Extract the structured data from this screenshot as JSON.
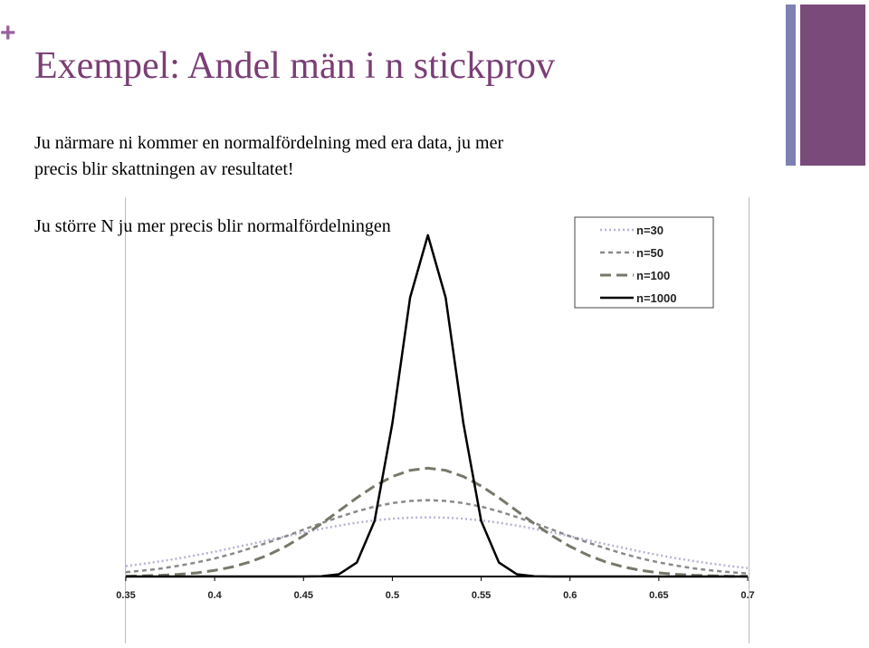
{
  "slide": {
    "marker": "+",
    "title": "Exempel: Andel män i n stickprov",
    "body": [
      "Ju närmare ni kommer en normalfördelning med era data, ju mer",
      "precis blir skattningen av resultatet!",
      "Ju större N ju mer precis blir normalfördelningen"
    ]
  },
  "chart_data": {
    "type": "line",
    "x": [
      0.35,
      0.36,
      0.37,
      0.38,
      0.39,
      0.4,
      0.41,
      0.42,
      0.43,
      0.44,
      0.45,
      0.46,
      0.47,
      0.48,
      0.49,
      0.5,
      0.51,
      0.52,
      0.53,
      0.54,
      0.55,
      0.56,
      0.57,
      0.58,
      0.59,
      0.6,
      0.61,
      0.62,
      0.63,
      0.64,
      0.65,
      0.66,
      0.67,
      0.68,
      0.69,
      0.7
    ],
    "series": [
      {
        "name": "n=30",
        "color": "#b4b4d6",
        "dash": "2 3",
        "width": 2.5,
        "values": [
          0.77,
          0.94,
          1.13,
          1.34,
          1.58,
          1.83,
          2.11,
          2.39,
          2.68,
          2.97,
          3.25,
          3.52,
          3.76,
          3.97,
          4.14,
          4.27,
          4.34,
          4.37,
          4.34,
          4.27,
          4.14,
          3.97,
          3.76,
          3.52,
          3.25,
          2.97,
          2.68,
          2.39,
          2.11,
          1.83,
          1.58,
          1.34,
          1.13,
          0.94,
          0.77,
          0.62
        ]
      },
      {
        "name": "n=50",
        "color": "#8a8a8a",
        "dash": "5 4",
        "width": 2.5,
        "values": [
          0.32,
          0.44,
          0.59,
          0.8,
          1.04,
          1.33,
          1.68,
          2.08,
          2.51,
          2.97,
          3.46,
          3.94,
          4.39,
          4.81,
          5.16,
          5.42,
          5.58,
          5.64,
          5.58,
          5.42,
          5.16,
          4.81,
          4.39,
          3.94,
          3.46,
          2.97,
          2.51,
          2.08,
          1.68,
          1.33,
          1.04,
          0.8,
          0.59,
          0.44,
          0.32,
          0.22
        ]
      },
      {
        "name": "n=100",
        "color": "#77776a",
        "dash": "12 6",
        "width": 3,
        "values": [
          0.02,
          0.05,
          0.09,
          0.16,
          0.27,
          0.45,
          0.71,
          1.08,
          1.58,
          2.22,
          3.0,
          3.89,
          4.85,
          5.81,
          6.68,
          7.38,
          7.84,
          8.0,
          7.84,
          7.38,
          6.68,
          5.81,
          4.85,
          3.89,
          3.0,
          2.22,
          1.58,
          1.08,
          0.71,
          0.45,
          0.27,
          0.16,
          0.09,
          0.05,
          0.02,
          0.01
        ]
      },
      {
        "name": "n=1000",
        "color": "#000000",
        "dash": "none",
        "width": 2.5,
        "values": [
          0,
          0,
          0,
          0,
          0,
          0,
          0,
          0,
          0,
          0,
          0,
          0.02,
          0.17,
          1.03,
          4.1,
          11.3,
          20.6,
          25.2,
          20.6,
          11.3,
          4.1,
          1.03,
          0.17,
          0.02,
          0,
          0,
          0,
          0,
          0,
          0,
          0,
          0,
          0,
          0,
          0,
          0
        ]
      }
    ],
    "xlim": [
      0.35,
      0.7
    ],
    "xticks": [
      0.35,
      0.4,
      0.45,
      0.5,
      0.55,
      0.6,
      0.65,
      0.7
    ],
    "ylim": [
      0,
      28
    ],
    "legend": "upper right"
  }
}
